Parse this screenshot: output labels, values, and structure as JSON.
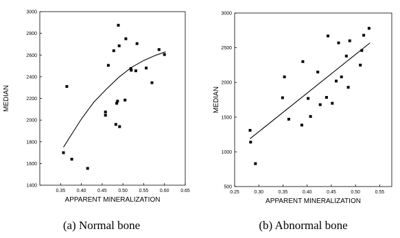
{
  "chart_data": [
    {
      "type": "scatter",
      "caption": "(a) Normal bone",
      "xlabel": "APPARENT MINERALIZATION",
      "ylabel": "MEDIAN",
      "xlim": [
        0.3,
        0.65
      ],
      "ylim": [
        1400,
        3000
      ],
      "xticks": [
        "0.35",
        "0.40",
        "0.45",
        "0.50",
        "0.55",
        "0.60",
        "0.65"
      ],
      "yticks": [
        "1400",
        "1600",
        "1800",
        "2000",
        "2200",
        "2400",
        "2600",
        "2800",
        "3000"
      ],
      "grid": false,
      "fit": "quadratic",
      "points": [
        {
          "x": 0.357,
          "y": 1700
        },
        {
          "x": 0.365,
          "y": 2310
        },
        {
          "x": 0.377,
          "y": 1640
        },
        {
          "x": 0.415,
          "y": 1555
        },
        {
          "x": 0.458,
          "y": 2075
        },
        {
          "x": 0.458,
          "y": 2045
        },
        {
          "x": 0.465,
          "y": 2505
        },
        {
          "x": 0.478,
          "y": 2640
        },
        {
          "x": 0.483,
          "y": 1960
        },
        {
          "x": 0.485,
          "y": 2155
        },
        {
          "x": 0.487,
          "y": 2175
        },
        {
          "x": 0.489,
          "y": 2875
        },
        {
          "x": 0.491,
          "y": 2685
        },
        {
          "x": 0.492,
          "y": 1940
        },
        {
          "x": 0.505,
          "y": 2185
        },
        {
          "x": 0.507,
          "y": 2750
        },
        {
          "x": 0.519,
          "y": 2475
        },
        {
          "x": 0.52,
          "y": 2460
        },
        {
          "x": 0.531,
          "y": 2455
        },
        {
          "x": 0.534,
          "y": 2705
        },
        {
          "x": 0.556,
          "y": 2480
        },
        {
          "x": 0.57,
          "y": 2345
        },
        {
          "x": 0.587,
          "y": 2650
        },
        {
          "x": 0.6,
          "y": 2605
        }
      ],
      "fit_line": [
        {
          "x": 0.357,
          "y": 1750
        },
        {
          "x": 0.38,
          "y": 1890
        },
        {
          "x": 0.4,
          "y": 2010
        },
        {
          "x": 0.43,
          "y": 2165
        },
        {
          "x": 0.46,
          "y": 2285
        },
        {
          "x": 0.49,
          "y": 2395
        },
        {
          "x": 0.52,
          "y": 2485
        },
        {
          "x": 0.55,
          "y": 2550
        },
        {
          "x": 0.58,
          "y": 2600
        },
        {
          "x": 0.603,
          "y": 2630
        }
      ]
    },
    {
      "type": "scatter",
      "caption": "(b) Abnormal bone",
      "xlabel": "APPARENT MINERALIZATION",
      "ylabel": "MEDIAN",
      "xlim": [
        0.25,
        0.575
      ],
      "ylim": [
        500,
        3000
      ],
      "xticks": [
        "0.25",
        "0.30",
        "0.35",
        "0.40",
        "0.45",
        "0.50",
        "0.55"
      ],
      "yticks": [
        "500",
        "1000",
        "1500",
        "2000",
        "2500",
        "3000"
      ],
      "grid": false,
      "fit": "linear",
      "points": [
        {
          "x": 0.282,
          "y": 1310
        },
        {
          "x": 0.283,
          "y": 1140
        },
        {
          "x": 0.293,
          "y": 830
        },
        {
          "x": 0.349,
          "y": 1780
        },
        {
          "x": 0.353,
          "y": 2080
        },
        {
          "x": 0.362,
          "y": 1470
        },
        {
          "x": 0.389,
          "y": 1385
        },
        {
          "x": 0.391,
          "y": 2300
        },
        {
          "x": 0.402,
          "y": 1770
        },
        {
          "x": 0.407,
          "y": 1510
        },
        {
          "x": 0.422,
          "y": 2150
        },
        {
          "x": 0.427,
          "y": 1680
        },
        {
          "x": 0.44,
          "y": 1785
        },
        {
          "x": 0.443,
          "y": 2670
        },
        {
          "x": 0.452,
          "y": 1700
        },
        {
          "x": 0.46,
          "y": 2020
        },
        {
          "x": 0.465,
          "y": 2570
        },
        {
          "x": 0.471,
          "y": 2080
        },
        {
          "x": 0.481,
          "y": 2380
        },
        {
          "x": 0.485,
          "y": 1930
        },
        {
          "x": 0.488,
          "y": 2600
        },
        {
          "x": 0.51,
          "y": 2250
        },
        {
          "x": 0.513,
          "y": 2460
        },
        {
          "x": 0.517,
          "y": 2680
        },
        {
          "x": 0.528,
          "y": 2780
        }
      ],
      "fit_line": [
        {
          "x": 0.282,
          "y": 1190
        },
        {
          "x": 0.53,
          "y": 2570
        }
      ]
    }
  ],
  "captions": [
    "(a) Normal bone",
    "(b) Abnormal bone"
  ]
}
